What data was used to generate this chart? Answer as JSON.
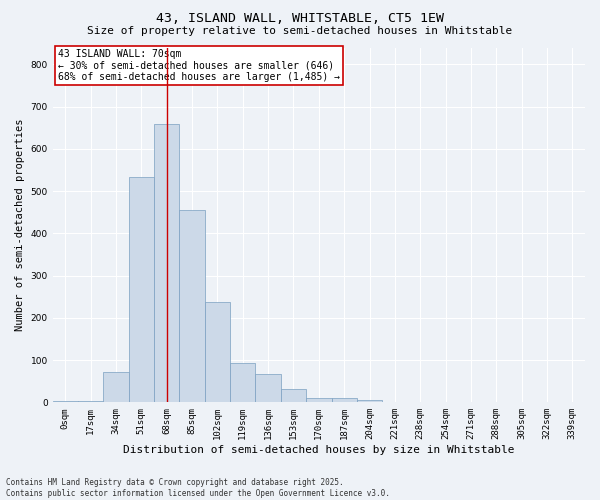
{
  "title": "43, ISLAND WALL, WHITSTABLE, CT5 1EW",
  "subtitle": "Size of property relative to semi-detached houses in Whitstable",
  "xlabel": "Distribution of semi-detached houses by size in Whitstable",
  "ylabel": "Number of semi-detached properties",
  "categories": [
    "0sqm",
    "17sqm",
    "34sqm",
    "51sqm",
    "68sqm",
    "85sqm",
    "102sqm",
    "119sqm",
    "136sqm",
    "153sqm",
    "170sqm",
    "187sqm",
    "204sqm",
    "221sqm",
    "238sqm",
    "254sqm",
    "271sqm",
    "288sqm",
    "305sqm",
    "322sqm",
    "339sqm"
  ],
  "values": [
    3,
    3,
    72,
    534,
    660,
    456,
    237,
    93,
    68,
    32,
    10,
    10,
    5,
    0,
    0,
    0,
    0,
    0,
    0,
    0,
    0
  ],
  "bar_color": "#ccd9e8",
  "bar_edge_color": "#7a9fc0",
  "vline_index": 4.5,
  "vline_color": "#cc0000",
  "annotation_text": "43 ISLAND WALL: 70sqm\n← 30% of semi-detached houses are smaller (646)\n68% of semi-detached houses are larger (1,485) →",
  "annotation_box_facecolor": "#ffffff",
  "annotation_box_edgecolor": "#cc0000",
  "ylim": [
    0,
    840
  ],
  "yticks": [
    0,
    100,
    200,
    300,
    400,
    500,
    600,
    700,
    800
  ],
  "background_color": "#eef2f7",
  "grid_color": "#ffffff",
  "footnote": "Contains HM Land Registry data © Crown copyright and database right 2025.\nContains public sector information licensed under the Open Government Licence v3.0.",
  "title_fontsize": 9.5,
  "subtitle_fontsize": 8,
  "ylabel_fontsize": 7.5,
  "xlabel_fontsize": 8,
  "tick_fontsize": 6.5,
  "annotation_fontsize": 7,
  "footnote_fontsize": 5.5
}
